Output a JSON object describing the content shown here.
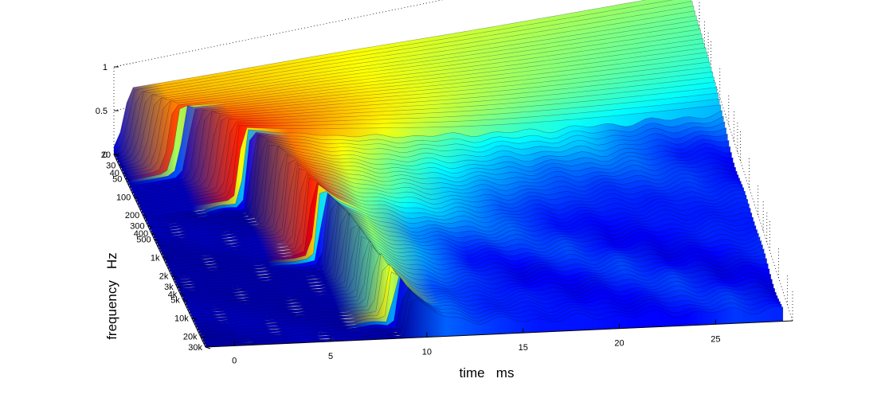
{
  "chart_data": {
    "type": "surface",
    "title": "",
    "xlabel": "time   ms",
    "ylabel": "frequency   Hz",
    "zlabel": "",
    "x_ticks": [
      0,
      5,
      10,
      15,
      20,
      25
    ],
    "x_tick_labels": [
      "0",
      "5",
      "10",
      "15",
      "20",
      "25"
    ],
    "xlim": [
      -1.5,
      29
    ],
    "y_scale": "log",
    "y_ticks": [
      20,
      30,
      40,
      50,
      100,
      200,
      300,
      400,
      500,
      1000,
      2000,
      3000,
      4000,
      5000,
      10000,
      20000,
      30000
    ],
    "y_tick_labels": [
      "20",
      "30",
      "40",
      "50",
      "100",
      "200",
      "300",
      "400",
      "500",
      "1k",
      "2k",
      "3k",
      "4k",
      "5k",
      "10k",
      "20k",
      "30k"
    ],
    "ylim": [
      20,
      30000
    ],
    "z_ticks": [
      0,
      0.5,
      1
    ],
    "z_tick_labels": [
      "0",
      "0.5",
      "1"
    ],
    "zlim": [
      0,
      1
    ],
    "colormap": "jet",
    "colormap_stops": [
      "#00008f",
      "#0000ff",
      "#00ffff",
      "#ffff00",
      "#ff0000",
      "#800000"
    ],
    "grid": true,
    "legend": "none",
    "peak_time_ms": [
      -0.5,
      0.2,
      1.0,
      2.3,
      3.3,
      3.9,
      4.5,
      5.2,
      5.7,
      6.3,
      6.9,
      7.4,
      7.9,
      8.6,
      9.3
    ],
    "decay_ms": [
      60,
      45,
      35,
      27,
      20,
      12,
      8,
      6,
      4.5,
      3.3,
      2.6,
      1.9,
      1.3,
      1.2,
      1.2
    ],
    "peak_level": [
      0.72,
      0.74,
      0.78,
      0.82,
      0.85,
      0.88,
      0.9,
      0.9,
      0.88,
      0.85,
      0.82,
      0.78,
      0.72,
      0.62,
      0.5
    ],
    "noise_floor": 0.18
  }
}
